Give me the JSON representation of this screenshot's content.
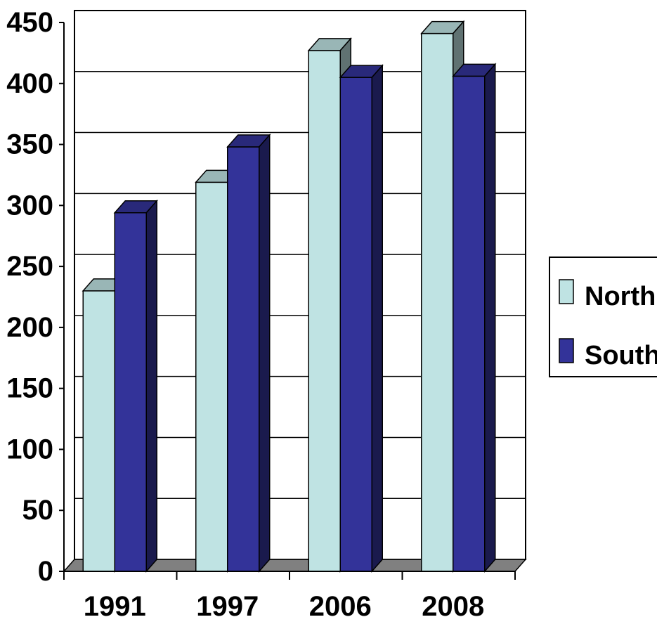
{
  "chart_data": {
    "type": "bar",
    "categories": [
      "1991",
      "1997",
      "2006",
      "2008"
    ],
    "series": [
      {
        "name": "North",
        "values": [
          230,
          319,
          427,
          441
        ],
        "color": "#bfe3e3"
      },
      {
        "name": "South",
        "values": [
          294,
          348,
          405,
          406
        ],
        "color": "#333399"
      }
    ],
    "ylim": [
      0,
      450
    ],
    "y_ticks": [
      "0",
      "50",
      "100",
      "150",
      "200",
      "250",
      "300",
      "350",
      "400",
      "450"
    ],
    "grid": true,
    "legend_position": "right",
    "style": "3d-clustered-column"
  }
}
